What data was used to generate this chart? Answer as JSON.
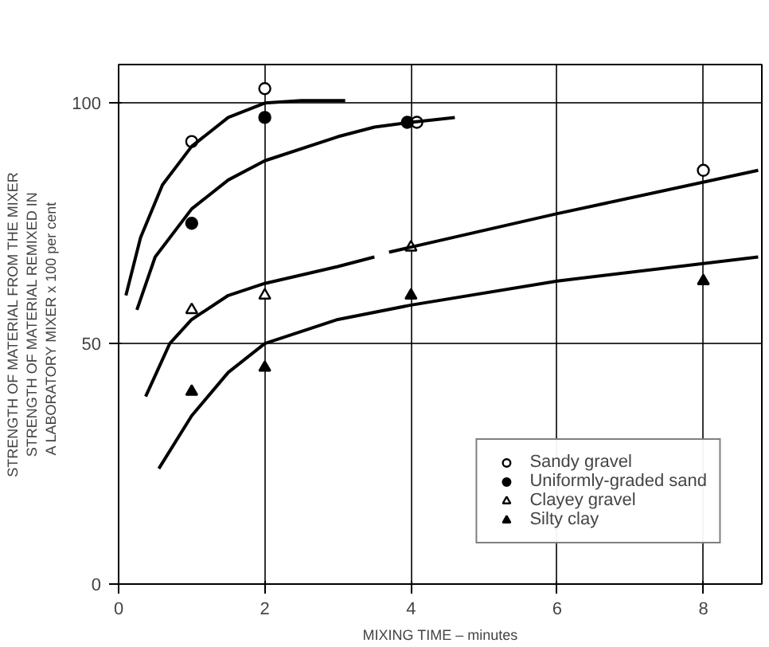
{
  "chart_data": {
    "type": "scatter",
    "xlabel": "MIXING TIME – minutes",
    "ylabel": "STRENGTH OF MATERIAL FROM THE MIXER\nSTRENGTH OF MATERIAL REMIXED IN\nA LABORATORY MIXER   x 100 per cent",
    "xlim": [
      0,
      8.8
    ],
    "ylim": [
      0,
      108
    ],
    "xticks": [
      0,
      2,
      4,
      6,
      8
    ],
    "yticks": [
      0,
      50,
      100
    ],
    "grid": true,
    "legend": "bottom right",
    "series": [
      {
        "name": "Sandy gravel",
        "color": "#ffffff",
        "marker": "circle",
        "x": [
          1,
          2,
          4.08,
          8
        ],
        "values": [
          92,
          103,
          96,
          86
        ]
      },
      {
        "name": "Uniformly-graded sand",
        "color": "#000000",
        "marker": "circle",
        "x": [
          1,
          2,
          3.95
        ],
        "values": [
          75,
          97,
          96
        ]
      },
      {
        "name": "Clayey gravel",
        "color": "#ffffff",
        "marker": "triangle",
        "x": [
          1,
          2,
          4
        ],
        "values": [
          57,
          60,
          70
        ]
      },
      {
        "name": "Silty clay",
        "color": "#000000",
        "marker": "triangle",
        "x": [
          1,
          2,
          4,
          8
        ],
        "values": [
          40,
          45,
          60,
          63
        ]
      },
      {
        "type": "line",
        "color": "#000000",
        "x": [
          0.1,
          0.3,
          0.6,
          1,
          1.5,
          2,
          2.5,
          3.1
        ],
        "values": [
          60,
          72,
          83,
          91,
          97,
          100,
          100.5,
          100.5
        ]
      },
      {
        "type": "line",
        "color": "#000000",
        "x": [
          0.25,
          0.5,
          1,
          1.5,
          2,
          3,
          3.5,
          4,
          4.6
        ],
        "values": [
          57,
          68,
          78,
          84,
          88,
          93,
          95,
          96,
          97
        ]
      },
      {
        "type": "line",
        "color": "#000000",
        "x": [
          0.37,
          0.7,
          1,
          1.5,
          2,
          3,
          3.5,
          3.6,
          3.7,
          6,
          8.75
        ],
        "values": [
          39,
          50,
          55,
          60,
          62.5,
          66,
          68,
          null,
          69,
          77,
          86
        ]
      },
      {
        "type": "line",
        "color": "#000000",
        "x": [
          0.55,
          1,
          1.5,
          2,
          3,
          4,
          6,
          8.75
        ],
        "values": [
          24,
          35,
          44,
          50,
          55,
          58,
          63,
          68
        ]
      }
    ]
  }
}
